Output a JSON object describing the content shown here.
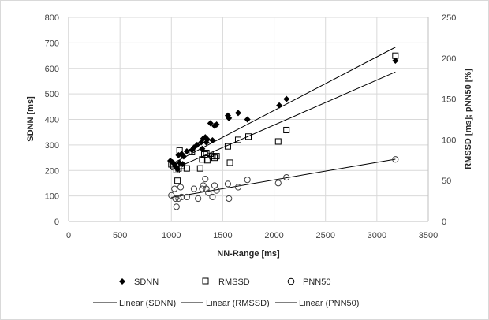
{
  "chart_data": {
    "type": "scatter",
    "title": "",
    "xlabel": "NN-Range [ms]",
    "ylabel": "SDNN [ms]",
    "y2label": "RMSSD [ms]; pNN50 [%]",
    "xlim": [
      0,
      3500
    ],
    "ylim": [
      0,
      800
    ],
    "y2lim": [
      0,
      250
    ],
    "xticks": [
      0,
      500,
      1000,
      1500,
      2000,
      2500,
      3000,
      3500
    ],
    "yticks": [
      0,
      100,
      200,
      300,
      400,
      500,
      600,
      700,
      800
    ],
    "y2ticks": [
      0,
      50,
      100,
      150,
      200,
      250
    ],
    "grid": true,
    "legend_position": "bottom",
    "series": [
      {
        "name": "SDNN",
        "marker": "diamond",
        "axis": "left",
        "color": "#000000",
        "points": [
          [
            990,
            238
          ],
          [
            1010,
            232
          ],
          [
            1030,
            225
          ],
          [
            1040,
            215
          ],
          [
            1050,
            210
          ],
          [
            1060,
            205
          ],
          [
            1070,
            260
          ],
          [
            1080,
            230
          ],
          [
            1100,
            265
          ],
          [
            1110,
            225
          ],
          [
            1120,
            255
          ],
          [
            1150,
            275
          ],
          [
            1200,
            280
          ],
          [
            1220,
            290
          ],
          [
            1250,
            300
          ],
          [
            1290,
            310
          ],
          [
            1300,
            285
          ],
          [
            1310,
            325
          ],
          [
            1330,
            330
          ],
          [
            1340,
            310
          ],
          [
            1350,
            322
          ],
          [
            1380,
            385
          ],
          [
            1400,
            318
          ],
          [
            1420,
            375
          ],
          [
            1440,
            380
          ],
          [
            1550,
            415
          ],
          [
            1560,
            405
          ],
          [
            1650,
            425
          ],
          [
            1740,
            400
          ],
          [
            2050,
            455
          ],
          [
            2120,
            480
          ],
          [
            3180,
            630
          ]
        ]
      },
      {
        "name": "RMSSD",
        "marker": "square",
        "axis": "right",
        "color": "#000000",
        "points": [
          [
            1000,
            70
          ],
          [
            1020,
            68
          ],
          [
            1050,
            63
          ],
          [
            1060,
            50
          ],
          [
            1070,
            65
          ],
          [
            1080,
            87
          ],
          [
            1100,
            68
          ],
          [
            1150,
            65
          ],
          [
            1200,
            85
          ],
          [
            1280,
            65
          ],
          [
            1300,
            76
          ],
          [
            1320,
            82
          ],
          [
            1340,
            84
          ],
          [
            1350,
            75
          ],
          [
            1380,
            83
          ],
          [
            1400,
            80
          ],
          [
            1420,
            78
          ],
          [
            1440,
            80
          ],
          [
            1550,
            92
          ],
          [
            1570,
            72
          ],
          [
            1650,
            100
          ],
          [
            1750,
            104
          ],
          [
            2040,
            98
          ],
          [
            2120,
            112
          ],
          [
            3180,
            203
          ]
        ]
      },
      {
        "name": "PNN50",
        "marker": "circle",
        "axis": "right",
        "color": "#000000",
        "points": [
          [
            1000,
            32
          ],
          [
            1030,
            40
          ],
          [
            1040,
            28
          ],
          [
            1050,
            18
          ],
          [
            1070,
            28
          ],
          [
            1090,
            42
          ],
          [
            1100,
            30
          ],
          [
            1150,
            30
          ],
          [
            1220,
            40
          ],
          [
            1260,
            28
          ],
          [
            1300,
            40
          ],
          [
            1310,
            44
          ],
          [
            1330,
            52
          ],
          [
            1340,
            40
          ],
          [
            1360,
            35
          ],
          [
            1400,
            30
          ],
          [
            1420,
            44
          ],
          [
            1440,
            38
          ],
          [
            1550,
            46
          ],
          [
            1560,
            28
          ],
          [
            1650,
            42
          ],
          [
            1740,
            51
          ],
          [
            2040,
            47
          ],
          [
            2120,
            54
          ],
          [
            3180,
            76
          ]
        ]
      }
    ],
    "trendlines": [
      {
        "name": "Linear (SDNN)",
        "axis": "left",
        "x": [
          1000,
          3180
        ],
        "y": [
          225,
          683
        ]
      },
      {
        "name": "Linear (RMSSD)",
        "axis": "right",
        "x": [
          1000,
          3180
        ],
        "y": [
          63.1,
          183.1
        ]
      },
      {
        "name": "Linear (PNN50)",
        "axis": "right",
        "x": [
          1000,
          3180
        ],
        "y": [
          29.4,
          76.3
        ]
      }
    ]
  },
  "legend": {
    "sdnn": "SDNN",
    "rmssd": "RMSSD",
    "pnn50": "PNN50",
    "lin_sdnn": "Linear (SDNN)",
    "lin_rmssd": "Linear (RMSSD)",
    "lin_pnn50": "Linear (PNN50)"
  }
}
